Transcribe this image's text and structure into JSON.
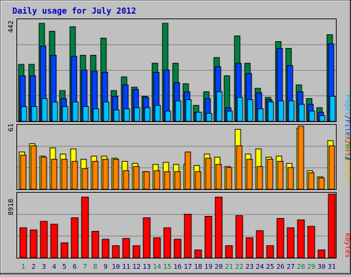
{
  "window": {
    "title": "Daily usage for July 2012"
  },
  "colors": {
    "background": "#c0c0c0",
    "plot_bg": "#c0c0c0",
    "title": "#0000c0",
    "pages": "#00c0ff",
    "files": "#0040ff",
    "hits": "#008040",
    "sites": "#ff8000",
    "visits": "#ffff00",
    "kbytes": "#ff0000",
    "weekend_day": "#008040",
    "weekday": "#000080",
    "axis_text": "#000000"
  },
  "chart_data": [
    {
      "type": "bar",
      "title": "Daily usage for July 2012",
      "panel": "hits-files-pages",
      "categories": [
        "1",
        "2",
        "3",
        "4",
        "5",
        "6",
        "7",
        "8",
        "9",
        "10",
        "11",
        "12",
        "13",
        "14",
        "15",
        "16",
        "17",
        "18",
        "19",
        "20",
        "21",
        "22",
        "23",
        "24",
        "25",
        "26",
        "27",
        "28",
        "29",
        "30",
        "31"
      ],
      "weekend_days": [
        "1",
        "7",
        "8",
        "14",
        "15",
        "21",
        "22",
        "28",
        "29"
      ],
      "ymax_label": "442",
      "ylim": [
        0,
        442
      ],
      "legend": [
        "Pages",
        "/",
        "Files",
        "/",
        "Hits"
      ],
      "series": [
        {
          "name": "Hits",
          "values": [
            250,
            250,
            430,
            395,
            135,
            415,
            290,
            290,
            365,
            135,
            195,
            150,
            110,
            255,
            430,
            255,
            165,
            70,
            130,
            280,
            200,
            375,
            255,
            145,
            105,
            350,
            320,
            160,
            100,
            60,
            380
          ]
        },
        {
          "name": "Files",
          "values": [
            200,
            200,
            330,
            290,
            100,
            285,
            225,
            220,
            215,
            110,
            160,
            140,
            105,
            215,
            225,
            170,
            130,
            40,
            100,
            240,
            60,
            255,
            210,
            125,
            95,
            320,
            245,
            130,
            75,
            40,
            340
          ]
        },
        {
          "name": "Pages",
          "values": [
            65,
            65,
            100,
            85,
            65,
            85,
            65,
            55,
            85,
            50,
            55,
            60,
            60,
            70,
            45,
            90,
            95,
            40,
            35,
            130,
            45,
            105,
            95,
            55,
            85,
            90,
            90,
            75,
            45,
            25,
            110
          ]
        }
      ]
    },
    {
      "type": "bar",
      "panel": "sites-visits",
      "categories": [
        "1",
        "2",
        "3",
        "4",
        "5",
        "6",
        "7",
        "8",
        "9",
        "10",
        "11",
        "12",
        "13",
        "14",
        "15",
        "16",
        "17",
        "18",
        "19",
        "20",
        "21",
        "22",
        "23",
        "24",
        "25",
        "26",
        "27",
        "28",
        "29",
        "30",
        "31"
      ],
      "ymax_label": "61",
      "ylim": [
        0,
        61
      ],
      "legend": [
        "Sites",
        "/",
        "Visits"
      ],
      "series": [
        {
          "name": "Visits",
          "values": [
            36,
            44,
            32,
            40,
            34,
            39,
            29,
            32,
            32,
            30,
            27,
            25,
            17,
            24,
            26,
            24,
            24,
            23,
            34,
            31,
            22,
            58,
            34,
            39,
            31,
            32,
            25,
            59,
            18,
            12,
            47
          ]
        },
        {
          "name": "Sites",
          "values": [
            33,
            42,
            31,
            29,
            29,
            27,
            20,
            27,
            29,
            29,
            18,
            22,
            17,
            18,
            17,
            17,
            36,
            17,
            30,
            24,
            21,
            42,
            29,
            22,
            29,
            27,
            21,
            61,
            16,
            11,
            42
          ]
        }
      ]
    },
    {
      "type": "bar",
      "panel": "kbytes",
      "categories": [
        "1",
        "2",
        "3",
        "4",
        "5",
        "6",
        "7",
        "8",
        "9",
        "10",
        "11",
        "12",
        "13",
        "14",
        "15",
        "16",
        "17",
        "18",
        "19",
        "20",
        "21",
        "22",
        "23",
        "24",
        "25",
        "26",
        "27",
        "28",
        "29",
        "30",
        "31"
      ],
      "ymax_label": "8918",
      "ylim": [
        0,
        8918
      ],
      "legend": [
        "KBytes"
      ],
      "series": [
        {
          "name": "KBytes",
          "values": [
            4200,
            3900,
            5100,
            4700,
            2100,
            5600,
            8500,
            3700,
            2600,
            1700,
            2700,
            1700,
            5600,
            2800,
            4200,
            2600,
            6100,
            1100,
            5800,
            8500,
            1700,
            5900,
            2800,
            3800,
            1700,
            5500,
            4200,
            5300,
            4400,
            1100,
            9200
          ]
        }
      ]
    }
  ]
}
